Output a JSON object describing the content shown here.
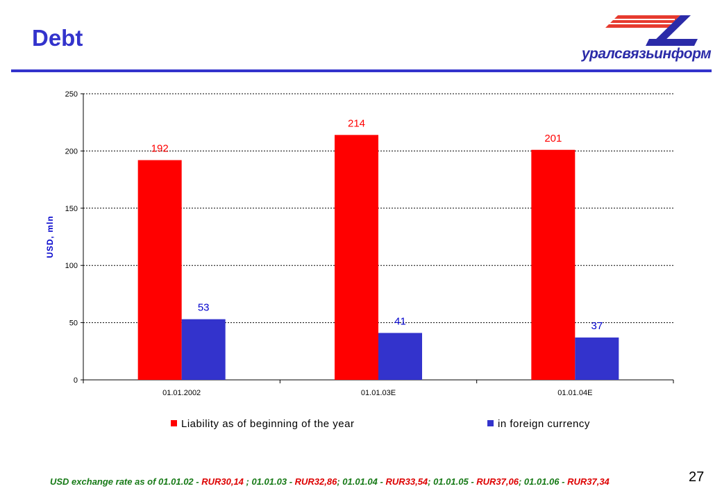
{
  "header": {
    "title": "Debt",
    "logo_text": "уралсвязьинформ"
  },
  "chart_data": {
    "type": "bar",
    "categories": [
      "01.01.2002",
      "01.01.03E",
      "01.01.04E"
    ],
    "series": [
      {
        "name": "Liability as of beginning of the year",
        "values": [
          192,
          214,
          201
        ],
        "color": "#ff0000",
        "label_color": "#ff0000"
      },
      {
        "name": "in foreign currency",
        "values": [
          53,
          41,
          37
        ],
        "color": "#3333cc",
        "label_color": "#0000cc"
      }
    ],
    "ylabel": "USD, mln",
    "ylim": [
      0,
      250
    ],
    "yticks": [
      0,
      50,
      100,
      150,
      200,
      250
    ],
    "grid": true,
    "legend_position": "bottom"
  },
  "footnote": {
    "part1": "USD exchange rate as of 01.01.02 - ",
    "part2": "RUR30,14",
    "part3": " ; 01.01.03 - ",
    "part4": "RUR32,86",
    "part5": "; 01.01.04 - ",
    "part6": "RUR33,54",
    "part7": "; 01.01.05 - ",
    "part8": "RUR37,06",
    "part9": "; 01.01.06 - ",
    "part10": "RUR37,34"
  },
  "page_number": "27"
}
